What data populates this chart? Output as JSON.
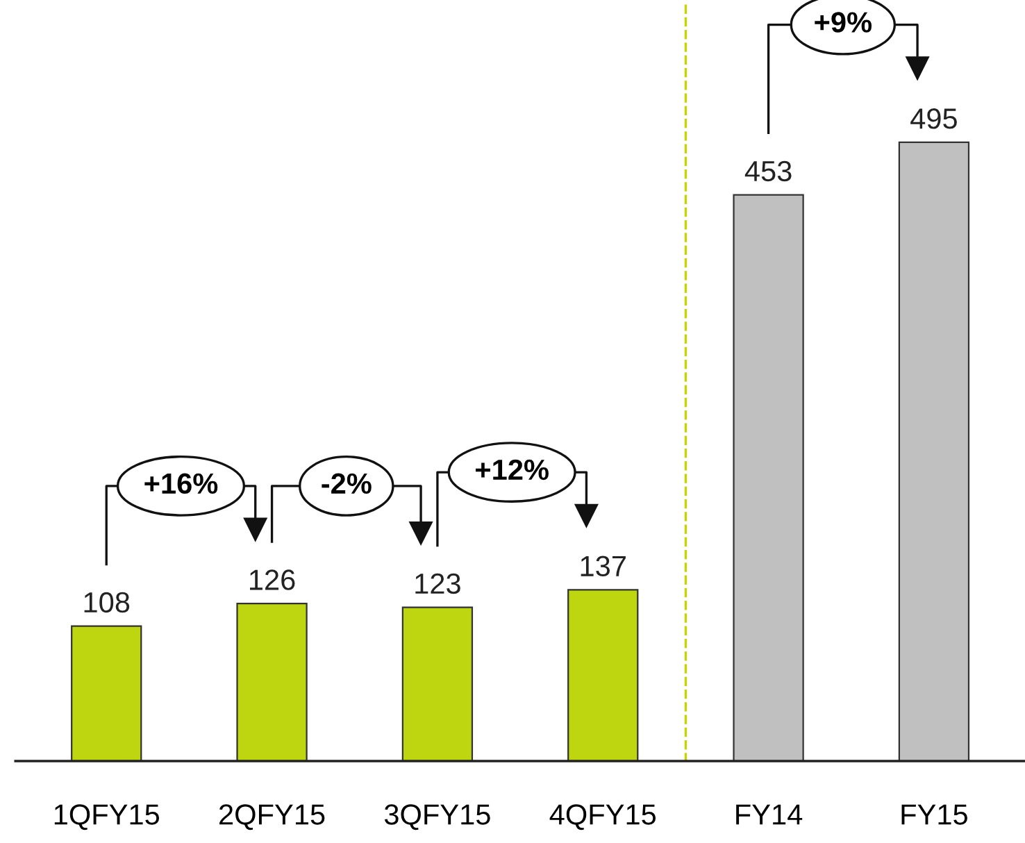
{
  "chart_data": {
    "type": "bar",
    "categories": [
      "1QFY15",
      "2QFY15",
      "3QFY15",
      "4QFY15",
      "FY14",
      "FY15"
    ],
    "values": [
      108,
      126,
      123,
      137,
      453,
      495
    ],
    "colors": [
      "#bdd60f",
      "#bdd60f",
      "#bdd60f",
      "#bdd60f",
      "#c0c0c0",
      "#c0c0c0"
    ],
    "data_labels": true,
    "annotations": [
      "+16%",
      "-2%",
      "+12%",
      "+9%"
    ]
  }
}
